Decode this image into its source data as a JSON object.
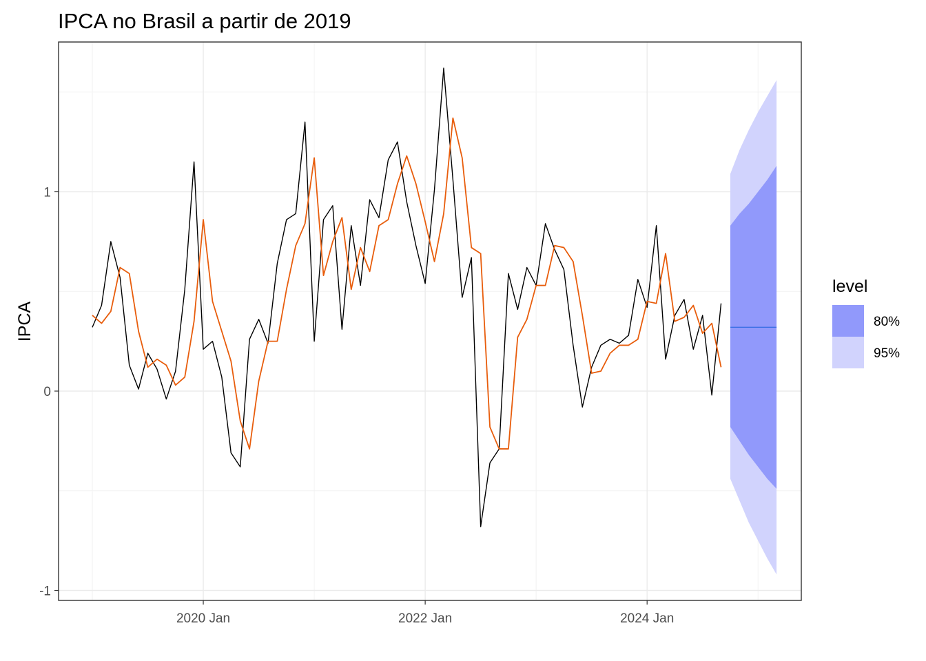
{
  "chart_data": {
    "type": "line",
    "title": "IPCA no Brasil a partir de 2019",
    "ylabel": "IPCA",
    "xlabel": "",
    "x_start": "2019-01",
    "x_ticks": [
      "2020 Jan",
      "2022 Jan",
      "2024 Jan"
    ],
    "y_ticks": [
      -1,
      0,
      1
    ],
    "ylim": [
      -1.06,
      1.75
    ],
    "grid": true,
    "legend_position": "right",
    "series": [
      {
        "values": [
          0.32,
          0.43,
          0.75,
          0.57,
          0.13,
          0.01,
          0.19,
          0.11,
          -0.04,
          0.1,
          0.51,
          1.15,
          0.21,
          0.25,
          0.07,
          -0.31,
          -0.38,
          0.26,
          0.36,
          0.24,
          0.64,
          0.86,
          0.89,
          1.35,
          0.25,
          0.86,
          0.93,
          0.31,
          0.83,
          0.53,
          0.96,
          0.87,
          1.16,
          1.25,
          0.95,
          0.73,
          0.54,
          1.01,
          1.62,
          1.06,
          0.47,
          0.67,
          -0.68,
          -0.36,
          -0.29,
          0.59,
          0.41,
          0.62,
          0.53,
          0.84,
          0.71,
          0.61,
          0.23,
          -0.08,
          0.12,
          0.23,
          0.26,
          0.24,
          0.28,
          0.56,
          0.42,
          0.83,
          0.16,
          0.38,
          0.46,
          0.21,
          0.38,
          -0.02,
          0.44
        ],
        "color": "#000000"
      },
      {
        "values": [
          0.38,
          0.34,
          0.4,
          0.62,
          0.59,
          0.3,
          0.12,
          0.16,
          0.13,
          0.03,
          0.07,
          0.35,
          0.86,
          0.45,
          0.3,
          0.15,
          -0.15,
          -0.29,
          0.05,
          0.25,
          0.25,
          0.51,
          0.73,
          0.84,
          1.17,
          0.58,
          0.75,
          0.87,
          0.51,
          0.72,
          0.6,
          0.83,
          0.86,
          1.04,
          1.18,
          1.04,
          0.85,
          0.65,
          0.89,
          1.37,
          1.17,
          0.72,
          0.69,
          -0.18,
          -0.29,
          -0.29,
          0.27,
          0.36,
          0.53,
          0.53,
          0.73,
          0.72,
          0.65,
          0.38,
          0.09,
          0.1,
          0.19,
          0.23,
          0.23,
          0.26,
          0.45,
          0.44,
          0.69,
          0.35,
          0.37,
          0.43,
          0.29,
          0.34,
          0.12
        ],
        "color": "#E85D0C"
      }
    ],
    "forecast": {
      "point": [
        0.32,
        0.32,
        0.32,
        0.32,
        0.32,
        0.32
      ],
      "lo80": [
        -0.18,
        -0.25,
        -0.32,
        -0.38,
        -0.44,
        -0.49
      ],
      "hi80": [
        0.83,
        0.89,
        0.94,
        1.0,
        1.06,
        1.13
      ],
      "lo95": [
        -0.44,
        -0.55,
        -0.66,
        -0.75,
        -0.84,
        -0.92
      ],
      "hi95": [
        1.09,
        1.21,
        1.31,
        1.4,
        1.48,
        1.56
      ],
      "point_color": "#3B6FE6",
      "band80_color": "#9199FB",
      "band95_color": "#D1D3FD"
    },
    "legend": {
      "title": "level",
      "items": [
        {
          "label": "80%",
          "color": "#9199FB"
        },
        {
          "label": "95%",
          "color": "#D1D3FD"
        }
      ]
    }
  }
}
